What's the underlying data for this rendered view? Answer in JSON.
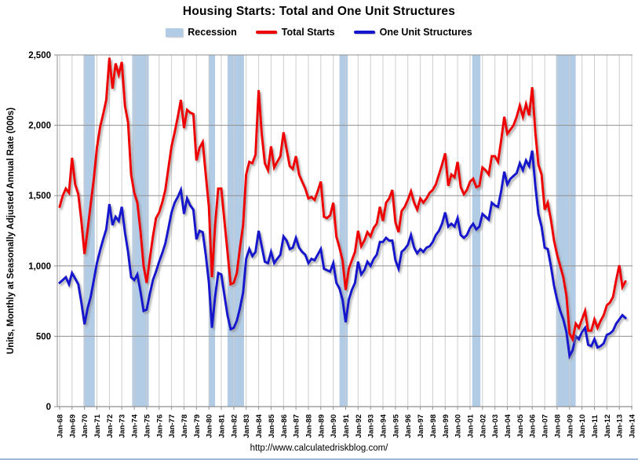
{
  "title": "Housing Starts: Total and One Unit Structures",
  "legend": {
    "recession_label": "Recession",
    "total_label": "Total Starts",
    "one_unit_label": "One Unit Structures"
  },
  "footer_url": "http://www.calculatedriskblog.com/",
  "colors": {
    "recession": "#b3cce6",
    "total_starts": "#ee0000",
    "one_unit": "#1414cc",
    "grid_vertical": "#cdcdcd",
    "grid_horizontal": "#8f8f8f",
    "axis": "#8f8f8f"
  },
  "chart_data": {
    "type": "line",
    "title": "Housing Starts: Total and One Unit Structures",
    "xlabel": "",
    "ylabel": "Units, Monthly at Seasonally Adjusted Annual Rate (000s)",
    "ylim": [
      0,
      2500
    ],
    "xlim": [
      1968,
      2014
    ],
    "grid": "on",
    "legend_position": "top",
    "y_ticks": [
      0,
      500,
      1000,
      1500,
      2000,
      2500
    ],
    "y_tick_labels": [
      "0",
      "500",
      "1,000",
      "1,500",
      "2,000",
      "2,500"
    ],
    "x_tick_labels": [
      "Jan-68",
      "Jan-69",
      "Jan-70",
      "Jan-71",
      "Jan-72",
      "Jan-73",
      "Jan-74",
      "Jan-75",
      "Jan-76",
      "Jan-77",
      "Jan-78",
      "Jan-79",
      "Jan-80",
      "Jan-81",
      "Jan-82",
      "Jan-83",
      "Jan-84",
      "Jan-85",
      "Jan-86",
      "Jan-87",
      "Jan-88",
      "Jan-89",
      "Jan-90",
      "Jan-91",
      "Jan-92",
      "Jan-93",
      "Jan-94",
      "Jan-95",
      "Jan-96",
      "Jan-97",
      "Jan-98",
      "Jan-99",
      "Jan-00",
      "Jan-01",
      "Jan-02",
      "Jan-03",
      "Jan-04",
      "Jan-05",
      "Jan-06",
      "Jan-07",
      "Jan-08",
      "Jan-09",
      "Jan-10",
      "Jan-11",
      "Jan-12",
      "Jan-13",
      "Jan-14"
    ],
    "x_start_year": 1968,
    "interval_years": 0.25,
    "recession_bands": [
      [
        1969.92,
        1970.83
      ],
      [
        1973.83,
        1975.17
      ],
      [
        1980.0,
        1980.5
      ],
      [
        1981.5,
        1982.83
      ],
      [
        1990.5,
        1991.17
      ],
      [
        2001.17,
        2001.83
      ],
      [
        2007.92,
        2009.5
      ]
    ],
    "series": [
      {
        "name": "Total Starts",
        "color": "#ee0000",
        "values": [
          1420,
          1500,
          1550,
          1520,
          1769,
          1580,
          1510,
          1320,
          1085,
          1260,
          1440,
          1620,
          1840,
          1986,
          2080,
          2180,
          2480,
          2260,
          2440,
          2360,
          2450,
          2140,
          2020,
          1650,
          1520,
          1450,
          1250,
          1000,
          880,
          1050,
          1210,
          1340,
          1380,
          1450,
          1540,
          1700,
          1850,
          1950,
          2060,
          2180,
          1980,
          2110,
          2090,
          2080,
          1750,
          1840,
          1880,
          1650,
          1420,
          920,
          1290,
          1550,
          1550,
          1320,
          1100,
          870,
          880,
          950,
          1130,
          1290,
          1650,
          1740,
          1730,
          1790,
          2250,
          1940,
          1730,
          1680,
          1850,
          1700,
          1740,
          1780,
          1950,
          1830,
          1710,
          1690,
          1780,
          1650,
          1600,
          1550,
          1480,
          1490,
          1470,
          1530,
          1600,
          1350,
          1340,
          1360,
          1450,
          1210,
          1130,
          1040,
          830,
          980,
          1040,
          1100,
          1250,
          1140,
          1180,
          1240,
          1210,
          1270,
          1300,
          1420,
          1320,
          1450,
          1480,
          1540,
          1310,
          1240,
          1390,
          1420,
          1470,
          1530,
          1450,
          1400,
          1480,
          1450,
          1480,
          1520,
          1540,
          1580,
          1650,
          1720,
          1800,
          1570,
          1650,
          1630,
          1740,
          1560,
          1510,
          1540,
          1600,
          1620,
          1560,
          1570,
          1700,
          1680,
          1650,
          1780,
          1780,
          1740,
          1890,
          2060,
          1940,
          1970,
          2000,
          2060,
          2140,
          2060,
          2150,
          2070,
          2270,
          1950,
          1720,
          1650,
          1400,
          1450,
          1330,
          1180,
          1080,
          1000,
          920,
          790,
          520,
          478,
          590,
          560,
          620,
          680,
          540,
          540,
          620,
          560,
          610,
          650,
          720,
          740,
          780,
          900,
          1005,
          850,
          890
        ]
      },
      {
        "name": "One Unit Structures",
        "color": "#1414cc",
        "values": [
          880,
          900,
          920,
          870,
          950,
          910,
          870,
          740,
          585,
          700,
          780,
          900,
          1020,
          1110,
          1190,
          1260,
          1440,
          1290,
          1350,
          1320,
          1420,
          1240,
          1100,
          920,
          900,
          940,
          820,
          680,
          690,
          800,
          900,
          960,
          1030,
          1090,
          1160,
          1270,
          1380,
          1450,
          1490,
          1540,
          1370,
          1480,
          1430,
          1400,
          1190,
          1250,
          1240,
          1080,
          880,
          560,
          780,
          950,
          940,
          790,
          650,
          550,
          560,
          610,
          700,
          810,
          1050,
          1120,
          1070,
          1100,
          1250,
          1140,
          1030,
          1020,
          1100,
          1020,
          1050,
          1080,
          1210,
          1180,
          1120,
          1130,
          1200,
          1130,
          1100,
          1080,
          1020,
          1050,
          1040,
          1080,
          1120,
          980,
          970,
          960,
          1020,
          880,
          840,
          760,
          600,
          760,
          830,
          880,
          1030,
          940,
          970,
          1030,
          1000,
          1050,
          1080,
          1170,
          1170,
          1200,
          1180,
          1180,
          1040,
          980,
          1100,
          1120,
          1150,
          1220,
          1130,
          1090,
          1120,
          1100,
          1130,
          1140,
          1170,
          1220,
          1250,
          1300,
          1380,
          1280,
          1300,
          1280,
          1340,
          1220,
          1200,
          1220,
          1270,
          1300,
          1260,
          1280,
          1370,
          1350,
          1330,
          1450,
          1430,
          1420,
          1530,
          1670,
          1580,
          1620,
          1640,
          1660,
          1730,
          1680,
          1750,
          1710,
          1820,
          1570,
          1370,
          1280,
          1130,
          1120,
          1000,
          860,
          760,
          680,
          620,
          530,
          360,
          400,
          500,
          480,
          530,
          560,
          440,
          430,
          480,
          420,
          430,
          450,
          510,
          520,
          540,
          590,
          620,
          650,
          630
        ]
      }
    ]
  }
}
